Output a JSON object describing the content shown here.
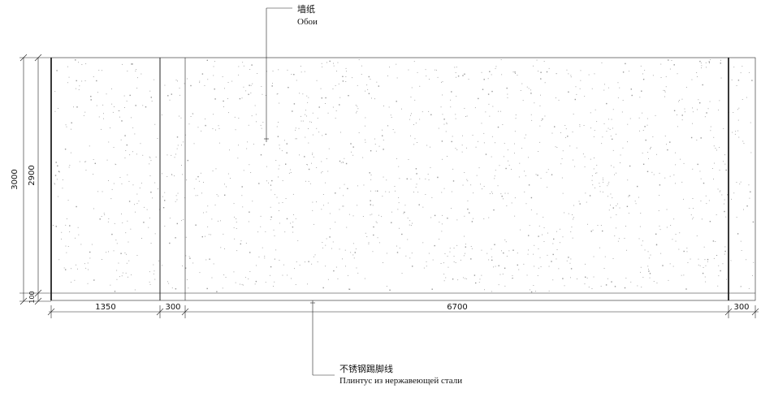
{
  "labels": {
    "wallpaper_zh": "墙纸",
    "wallpaper_ru": "Обои",
    "baseboard_zh": "不锈钢踢脚线",
    "baseboard_ru": "Плинтус из нержавеющей стали"
  },
  "dimensions": {
    "height_total": "3000",
    "height_wall": "2900",
    "height_base": "100",
    "seg1": "1350",
    "seg2": "300",
    "seg3": "6700",
    "seg4": "300"
  }
}
